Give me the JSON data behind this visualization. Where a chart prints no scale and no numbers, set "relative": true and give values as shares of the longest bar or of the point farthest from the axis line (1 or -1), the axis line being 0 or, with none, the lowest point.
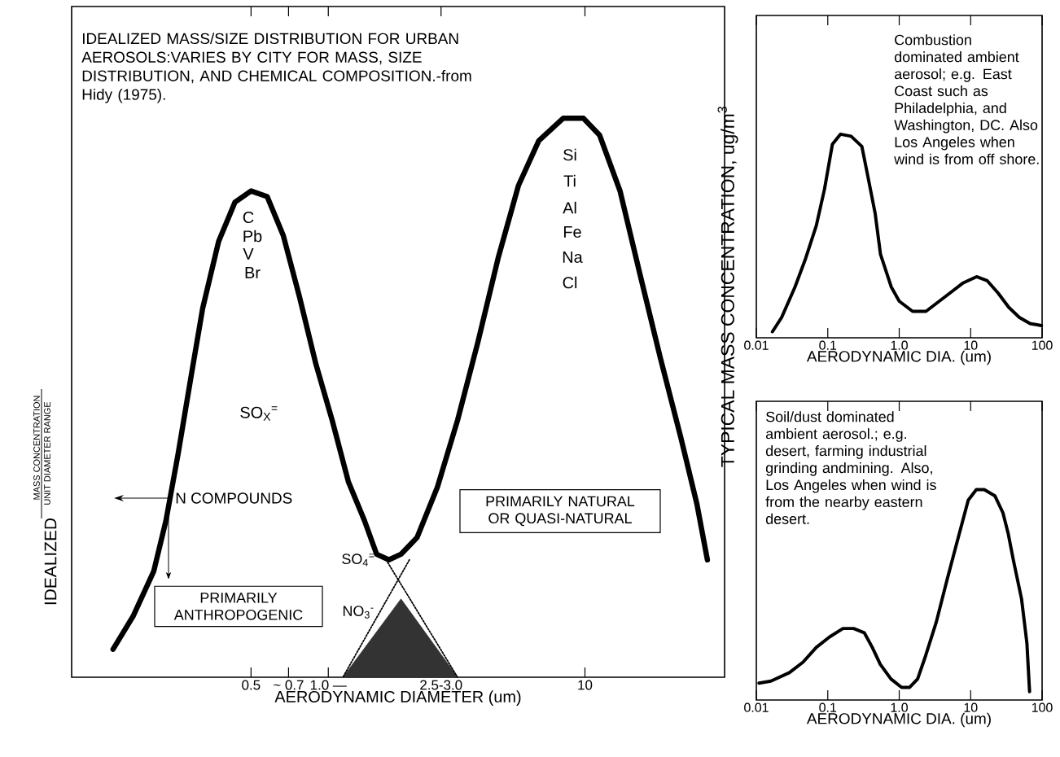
{
  "chart_data": [
    {
      "type": "line",
      "title": "IDEALIZED MASS/SIZE DISTRIBUTION FOR URBAN AEROSOLS:VARIES BY CITY FOR MASS, SIZE DISTRIBUTION, AND CHEMICAL COMPOSITION.-from Hidy (1975).",
      "xlabel": "AERODYNAMIC DIAMETER (um)",
      "ylabel": "IDEALIZED",
      "relative": true,
      "log": "x",
      "xlim": [
        0.1,
        35
      ],
      "xticks": [
        0.5,
        {
          "value": 0.7,
          "label": "~ 0.7"
        },
        {
          "value": 1.0,
          "label": "1.0 —"
        },
        {
          "value": 2.75,
          "label": "2.5-3.0"
        },
        10
      ],
      "series": [
        {
          "color": "#000000",
          "x": [
            0.145,
            0.174,
            0.209,
            0.233,
            0.26,
            0.29,
            0.324,
            0.374,
            0.433,
            0.5,
            0.578,
            0.668,
            0.773,
            0.895,
            1.035,
            1.197,
            1.384,
            1.543,
            1.722,
            1.919,
            2.218,
            2.661,
            3.19,
            3.83,
            4.59,
            5.51,
            6.61,
            8.22,
            9.86,
            11.4,
            13.7,
            16.4,
            19.7,
            23.6,
            27.3,
            30.0
          ],
          "values": [
            0.05,
            0.11,
            0.19,
            0.28,
            0.4,
            0.53,
            0.66,
            0.78,
            0.85,
            0.87,
            0.86,
            0.79,
            0.68,
            0.56,
            0.46,
            0.35,
            0.28,
            0.22,
            0.21,
            0.22,
            0.25,
            0.34,
            0.46,
            0.6,
            0.75,
            0.88,
            0.96,
            1.0,
            1.0,
            0.97,
            0.87,
            0.72,
            0.57,
            0.43,
            0.31,
            0.21
          ]
        },
        {
          "type": "area",
          "color": "#333333",
          "x": [
            1.14,
            1.92,
            3.19
          ],
          "values": [
            0,
            0.14,
            0
          ]
        },
        {
          "color": "#000000",
          "line_style": "dotted",
          "x": [
            1.68,
            3.19
          ],
          "values": [
            0.21,
            0
          ]
        },
        {
          "color": "#000000",
          "line_style": "dotted",
          "x": [
            2.07,
            1.14
          ],
          "values": [
            0.21,
            0
          ]
        }
      ],
      "annotations": [
        "MASS CONCENTRATION",
        "UNIT DIAMETER RANGE",
        "N COMPOUNDS",
        "PRIMARILY ANTHROPOGENIC",
        "PRIMARILY NATURAL OR QUASI-NATURAL",
        "SO$_{4}$$^{=}$",
        "NO$_{3}$$^{-}$",
        "C",
        "Pb",
        "V",
        "Br",
        "SO$_{X}$$^{=}$",
        "Si",
        "Ti",
        "Al",
        "Fe",
        "Na",
        "Cl"
      ]
    },
    {
      "type": "line",
      "xlabel": "AERODYNAMIC DIA. (um)",
      "ylabel": "TYPICAL MASS CONCENTRATION, ug/m$^{3}$",
      "relative": true,
      "log": "x",
      "xlim": [
        0.01,
        100
      ],
      "xticks": [
        0.01,
        0.1,
        {
          "value": 1,
          "label": "1.0"
        },
        10,
        100
      ],
      "series": [
        {
          "color": "#000000",
          "x": [
            0.0168,
            0.0226,
            0.0348,
            0.049,
            0.069,
            0.09,
            0.116,
            0.151,
            0.212,
            0.3,
            0.356,
            0.461,
            0.547,
            0.773,
            1.0,
            1.54,
            2.37,
            3.34,
            5.13,
            7.89,
            12.1,
            17.1,
            24.2,
            34.1,
            48.1,
            67.9,
            98
          ],
          "values": [
            0.03,
            0.1,
            0.25,
            0.39,
            0.55,
            0.73,
            0.95,
            1.0,
            0.99,
            0.94,
            0.81,
            0.61,
            0.41,
            0.25,
            0.18,
            0.13,
            0.13,
            0.17,
            0.22,
            0.27,
            0.3,
            0.28,
            0.22,
            0.15,
            0.1,
            0.07,
            0.06
          ]
        }
      ],
      "annotations": [
        "Combustion dominated ambient aerosol; e.g. East Coast such as Philadelphia, and Washington, DC. Also Los Angeles when wind is from off shore."
      ]
    },
    {
      "type": "line",
      "xlabel": "AERODYNAMIC DIA. (um)",
      "relative": true,
      "log": "x",
      "xlim": [
        0.01,
        100
      ],
      "xticks": [
        0.01,
        0.1,
        {
          "value": 1,
          "label": "1.0"
        },
        10,
        100
      ],
      "series": [
        {
          "color": "#000000",
          "x": [
            0.0109,
            0.016,
            0.029,
            0.045,
            0.069,
            0.106,
            0.163,
            0.23,
            0.324,
            0.42,
            0.543,
            0.766,
            1.08,
            1.4,
            1.81,
            2.34,
            3.3,
            4.66,
            6.56,
            9.25,
            12.0,
            15.5,
            21.9,
            28.3,
            33.6,
            39.9,
            51.6,
            61.3,
            66.8
          ],
          "values": [
            0.08,
            0.09,
            0.13,
            0.18,
            0.25,
            0.3,
            0.34,
            0.34,
            0.32,
            0.25,
            0.17,
            0.1,
            0.06,
            0.06,
            0.1,
            0.21,
            0.37,
            0.57,
            0.76,
            0.95,
            1.0,
            1.0,
            0.97,
            0.89,
            0.79,
            0.66,
            0.48,
            0.27,
            0.04
          ]
        }
      ],
      "annotations": [
        "Soil/dust dominated ambient aerosol.; e.g. desert, farming industrial grinding andmining. Also, Los Angeles when wind is from the nearby eastern desert."
      ]
    }
  ]
}
